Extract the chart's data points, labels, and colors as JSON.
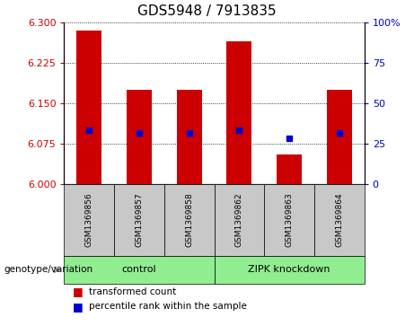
{
  "title": "GDS5948 / 7913835",
  "samples": [
    "GSM1369856",
    "GSM1369857",
    "GSM1369858",
    "GSM1369862",
    "GSM1369863",
    "GSM1369864"
  ],
  "bar_values": [
    6.285,
    6.175,
    6.175,
    6.265,
    6.055,
    6.175
  ],
  "percentile_values": [
    6.1,
    6.095,
    6.095,
    6.1,
    6.085,
    6.095
  ],
  "ymin": 6.0,
  "ymax": 6.3,
  "yticks_left": [
    6.0,
    6.075,
    6.15,
    6.225,
    6.3
  ],
  "yticks_right": [
    0,
    25,
    50,
    75,
    100
  ],
  "bar_color": "#cc0000",
  "dot_color": "#0000cc",
  "group_label": "genotype/variation",
  "group1_label": "control",
  "group2_label": "ZIPK knockdown",
  "legend_bar_label": "transformed count",
  "legend_dot_label": "percentile rank within the sample",
  "title_fontsize": 11,
  "axis_color_left": "#cc0000",
  "axis_color_right": "#0000cc",
  "tick_fontsize": 8,
  "bar_width": 0.5,
  "label_bg": "#c8c8c8",
  "group_bg": "#90ee90"
}
